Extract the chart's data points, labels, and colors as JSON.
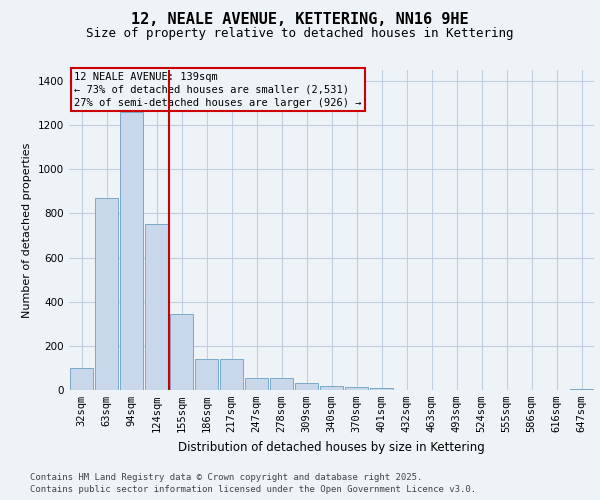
{
  "title": "12, NEALE AVENUE, KETTERING, NN16 9HE",
  "subtitle": "Size of property relative to detached houses in Kettering",
  "xlabel": "Distribution of detached houses by size in Kettering",
  "ylabel": "Number of detached properties",
  "annotation_title": "12 NEALE AVENUE: 139sqm",
  "annotation_line1": "← 73% of detached houses are smaller (2,531)",
  "annotation_line2": "27% of semi-detached houses are larger (926) →",
  "footer_line1": "Contains HM Land Registry data © Crown copyright and database right 2025.",
  "footer_line2": "Contains public sector information licensed under the Open Government Licence v3.0.",
  "bar_color": "#c8d8ea",
  "bar_edge_color": "#7aaac8",
  "grid_color": "#c0cfe0",
  "annotation_box_color": "#cc0000",
  "vline_color": "#cc0000",
  "background_color": "#eef3f8",
  "categories": [
    "32sqm",
    "63sqm",
    "94sqm",
    "124sqm",
    "155sqm",
    "186sqm",
    "217sqm",
    "247sqm",
    "278sqm",
    "309sqm",
    "340sqm",
    "370sqm",
    "401sqm",
    "432sqm",
    "463sqm",
    "493sqm",
    "524sqm",
    "555sqm",
    "586sqm",
    "616sqm",
    "647sqm"
  ],
  "values": [
    100,
    870,
    1260,
    750,
    345,
    140,
    140,
    55,
    55,
    30,
    20,
    13,
    10,
    2,
    2,
    2,
    2,
    2,
    0,
    0,
    5
  ],
  "vline_x_index": 3.48,
  "ylim": [
    0,
    1450
  ],
  "yticks": [
    0,
    200,
    400,
    600,
    800,
    1000,
    1200,
    1400
  ],
  "title_fontsize": 11,
  "subtitle_fontsize": 9,
  "ylabel_fontsize": 8,
  "xlabel_fontsize": 8.5,
  "tick_fontsize": 7.5,
  "footer_fontsize": 6.5
}
